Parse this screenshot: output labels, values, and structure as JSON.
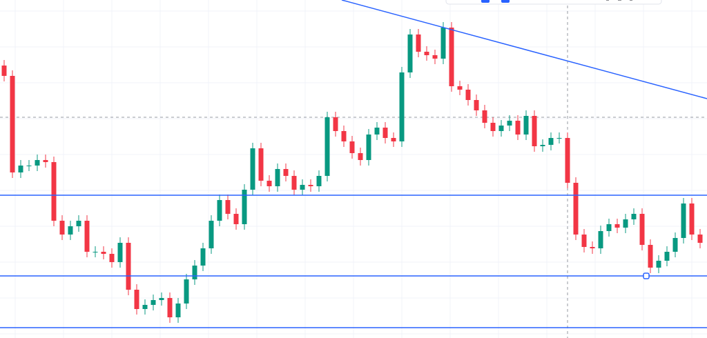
{
  "chart_data": {
    "type": "candlestick",
    "ylim": [
      0,
      490
    ],
    "open": [
      395,
      380,
      240,
      250,
      250,
      258,
      255,
      170,
      150,
      162,
      170,
      125,
      125,
      122,
      110,
      138,
      70,
      42,
      48,
      55,
      58,
      30,
      50,
      85,
      105,
      130,
      170,
      200,
      180,
      165,
      215,
      275,
      228,
      220,
      245,
      235,
      215,
      222,
      220,
      235,
      320,
      300,
      285,
      268,
      258,
      295,
      305,
      290,
      285,
      385,
      440,
      415,
      410,
      405,
      450,
      365,
      360,
      345,
      330,
      312,
      300,
      308,
      315,
      295,
      322,
      278,
      280,
      290,
      290,
      225,
      150,
      132,
      130,
      155,
      165,
      160,
      172,
      180,
      135,
      102,
      112,
      125,
      145,
      195,
      150
    ],
    "high": [
      403,
      388,
      258,
      258,
      266,
      266,
      263,
      178,
      170,
      178,
      178,
      133,
      133,
      130,
      146,
      146,
      78,
      56,
      63,
      66,
      66,
      58,
      93,
      113,
      138,
      178,
      208,
      208,
      188,
      223,
      283,
      283,
      236,
      253,
      253,
      243,
      230,
      230,
      243,
      328,
      328,
      308,
      293,
      276,
      303,
      313,
      313,
      298,
      393,
      448,
      448,
      423,
      418,
      458,
      458,
      373,
      368,
      353,
      338,
      320,
      316,
      323,
      323,
      330,
      330,
      288,
      298,
      298,
      298,
      233,
      158,
      140,
      163,
      173,
      173,
      180,
      188,
      188,
      143,
      120,
      133,
      153,
      203,
      203,
      158
    ],
    "low": [
      372,
      232,
      232,
      242,
      242,
      247,
      162,
      142,
      142,
      154,
      117,
      117,
      114,
      102,
      102,
      62,
      34,
      34,
      40,
      47,
      22,
      22,
      42,
      77,
      97,
      122,
      162,
      172,
      157,
      157,
      207,
      220,
      212,
      212,
      227,
      207,
      207,
      212,
      212,
      227,
      292,
      277,
      260,
      250,
      250,
      287,
      282,
      277,
      277,
      377,
      407,
      402,
      397,
      397,
      357,
      352,
      337,
      322,
      304,
      292,
      292,
      300,
      287,
      287,
      270,
      270,
      272,
      282,
      217,
      142,
      124,
      122,
      122,
      147,
      152,
      152,
      164,
      127,
      94,
      94,
      104,
      117,
      137,
      142,
      130
    ],
    "close": [
      380,
      240,
      250,
      250,
      258,
      255,
      170,
      150,
      162,
      170,
      125,
      125,
      122,
      110,
      138,
      70,
      42,
      48,
      55,
      58,
      30,
      50,
      85,
      105,
      130,
      170,
      200,
      180,
      165,
      215,
      275,
      228,
      220,
      245,
      235,
      215,
      222,
      220,
      235,
      320,
      300,
      285,
      268,
      258,
      295,
      305,
      290,
      285,
      385,
      440,
      415,
      410,
      405,
      450,
      365,
      360,
      345,
      330,
      312,
      300,
      308,
      315,
      295,
      322,
      278,
      280,
      290,
      290,
      225,
      150,
      132,
      130,
      155,
      165,
      160,
      172,
      180,
      135,
      102,
      112,
      125,
      145,
      195,
      150,
      138
    ],
    "up_color": "#089981",
    "down_color": "#f23645",
    "levels": [
      207,
      90,
      15
    ],
    "level_color": "#2962ff",
    "trend_line": {
      "start": 490,
      "end": 347
    },
    "grid": true
  }
}
